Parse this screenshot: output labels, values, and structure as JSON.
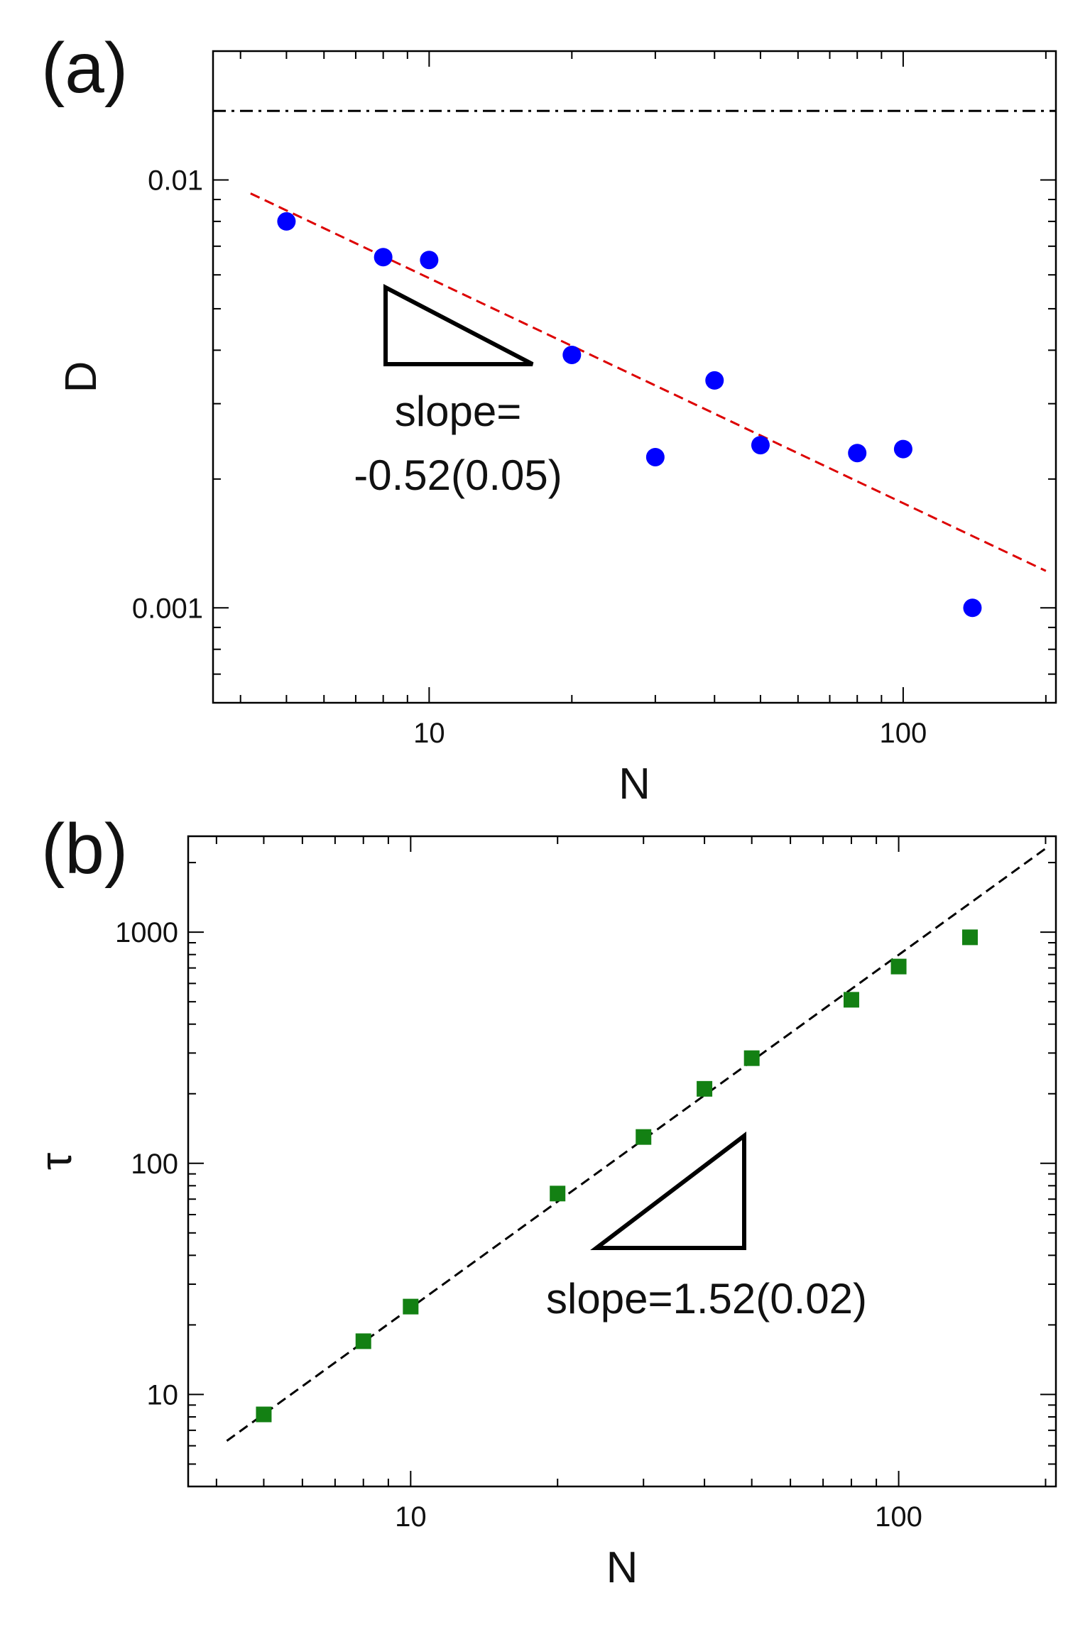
{
  "chart_data": [
    {
      "panel": "(a)",
      "type": "scatter",
      "log_x": true,
      "log_y": true,
      "xlabel": "N",
      "ylabel": "D",
      "xlim": [
        3.5,
        210
      ],
      "ylim": [
        0.0006,
        0.02
      ],
      "x_ticks": [
        {
          "value": 10,
          "label": "10"
        },
        {
          "value": 100,
          "label": "100"
        }
      ],
      "y_ticks": [
        {
          "value": 0.01,
          "label": "0.01"
        },
        {
          "value": 0.001,
          "label": "0.001"
        }
      ],
      "marker": "circle",
      "marker_color": "#0000ff",
      "points": [
        {
          "x": 5,
          "y": 0.008
        },
        {
          "x": 8,
          "y": 0.0066
        },
        {
          "x": 10,
          "y": 0.0065
        },
        {
          "x": 20,
          "y": 0.0039
        },
        {
          "x": 30,
          "y": 0.00225
        },
        {
          "x": 40,
          "y": 0.0034
        },
        {
          "x": 50,
          "y": 0.0024
        },
        {
          "x": 80,
          "y": 0.0023
        },
        {
          "x": 100,
          "y": 0.00235
        },
        {
          "x": 140,
          "y": 0.001
        }
      ],
      "fit_line": {
        "x": [
          4.2,
          200
        ],
        "y": [
          0.0093,
          0.00122
        ],
        "color": "#dd0000",
        "style": "dashed"
      },
      "reference_line": {
        "y": 0.0145,
        "color": "#000000",
        "style": "dash-dot"
      },
      "slope_triangle": {
        "label_line1": "slope=",
        "label_line2": "-0.52(0.05)"
      }
    },
    {
      "panel": "(b)",
      "type": "scatter",
      "log_x": true,
      "log_y": true,
      "xlabel": "N",
      "ylabel": "τ",
      "xlim": [
        3.5,
        210
      ],
      "ylim": [
        4,
        2600
      ],
      "x_ticks": [
        {
          "value": 10,
          "label": "10"
        },
        {
          "value": 100,
          "label": "100"
        }
      ],
      "y_ticks": [
        {
          "value": 10,
          "label": "10"
        },
        {
          "value": 100,
          "label": "100"
        },
        {
          "value": 1000,
          "label": "1000"
        }
      ],
      "marker": "square",
      "marker_color": "#138013",
      "points": [
        {
          "x": 5,
          "y": 8.2
        },
        {
          "x": 8,
          "y": 17
        },
        {
          "x": 10,
          "y": 24
        },
        {
          "x": 20,
          "y": 74
        },
        {
          "x": 30,
          "y": 130
        },
        {
          "x": 40,
          "y": 210
        },
        {
          "x": 50,
          "y": 285
        },
        {
          "x": 80,
          "y": 510
        },
        {
          "x": 100,
          "y": 710
        },
        {
          "x": 140,
          "y": 950
        }
      ],
      "fit_line": {
        "x": [
          4.2,
          200
        ],
        "y": [
          6.3,
          2300
        ],
        "color": "#000000",
        "style": "dashed"
      },
      "slope_triangle": {
        "label_line1": "slope=1.52(0.02)"
      }
    }
  ]
}
